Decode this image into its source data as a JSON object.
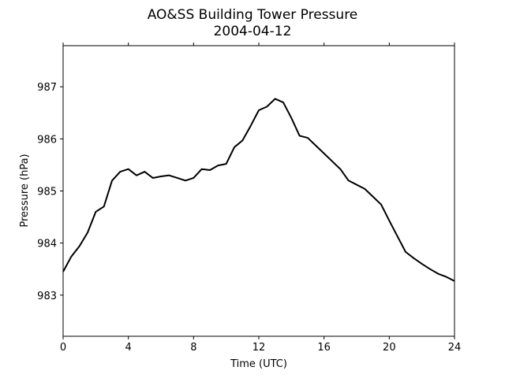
{
  "chart_data": {
    "type": "line",
    "title": "AO&SS Building Tower Pressure",
    "subtitle": "2004-04-12",
    "xlabel": "Time (UTC)",
    "ylabel": "Pressure (hPa)",
    "xlim": [
      0,
      24
    ],
    "xticks": [
      0,
      4,
      8,
      12,
      16,
      20,
      24
    ],
    "ylim": [
      982.21,
      987.79
    ],
    "yticks": [
      983,
      984,
      985,
      986,
      987
    ],
    "grid": false,
    "series": [
      {
        "color": "#000000",
        "x": [
          0,
          0.5,
          1,
          1.5,
          2,
          2.5,
          3,
          3.5,
          4,
          4.5,
          5,
          5.5,
          6,
          6.5,
          7,
          7.5,
          8,
          8.5,
          9,
          9.5,
          10,
          10.5,
          11,
          11.5,
          12,
          12.5,
          13,
          13.5,
          14,
          14.5,
          15,
          15.5,
          16,
          16.5,
          17,
          17.5,
          18,
          18.5,
          19,
          19.5,
          20,
          20.5,
          21,
          21.5,
          22,
          22.5,
          23,
          23.5,
          24
        ],
        "values": [
          983.45,
          983.74,
          983.94,
          984.2,
          984.6,
          984.7,
          985.2,
          985.37,
          985.42,
          985.3,
          985.37,
          985.25,
          985.28,
          985.3,
          985.25,
          985.2,
          985.25,
          985.42,
          985.4,
          985.49,
          985.52,
          985.84,
          985.97,
          986.25,
          986.55,
          986.62,
          986.77,
          986.7,
          986.4,
          986.06,
          986.02,
          985.87,
          985.72,
          985.57,
          985.42,
          985.2,
          985.12,
          985.04,
          984.89,
          984.74,
          984.43,
          984.13,
          983.83,
          983.71,
          983.6,
          983.5,
          983.41,
          983.35,
          983.27
        ]
      }
    ]
  }
}
